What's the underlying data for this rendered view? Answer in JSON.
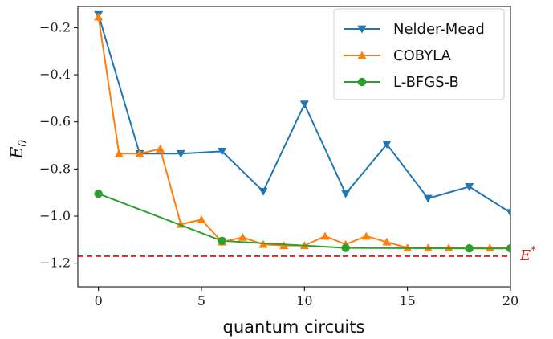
{
  "chart_data": {
    "type": "line",
    "xlabel": "quantum circuits",
    "ylabel": "E",
    "ylabel_sub": "θ",
    "xlim": [
      -1,
      20
    ],
    "ylim": [
      -1.3,
      -0.11
    ],
    "xticks": [
      0,
      5,
      10,
      15,
      20
    ],
    "xtick_labels": [
      "0",
      "5",
      "10",
      "15",
      "20"
    ],
    "yticks": [
      -0.2,
      -0.4,
      -0.6,
      -0.8,
      -1.0,
      -1.2
    ],
    "ytick_labels": [
      "−0.2",
      "−0.4",
      "−0.6",
      "−0.8",
      "−1.0",
      "−1.2"
    ],
    "grid": false,
    "legend_position": "top-right",
    "series": [
      {
        "name": "Nelder-Mead",
        "color": "#1f77b4",
        "marker": "triangle-down",
        "points": [
          [
            0,
            -0.145
          ],
          [
            2,
            -0.735
          ],
          [
            4,
            -0.735
          ],
          [
            6,
            -0.725
          ],
          [
            8,
            -0.895
          ],
          [
            10,
            -0.525
          ],
          [
            12,
            -0.905
          ],
          [
            14,
            -0.695
          ],
          [
            16,
            -0.925
          ],
          [
            18,
            -0.875
          ],
          [
            20,
            -0.985
          ]
        ]
      },
      {
        "name": "COBYLA",
        "color": "#ff7f0e",
        "marker": "triangle-up",
        "points": [
          [
            0,
            -0.155
          ],
          [
            1,
            -0.735
          ],
          [
            2,
            -0.735
          ],
          [
            3,
            -0.715
          ],
          [
            4,
            -1.035
          ],
          [
            5,
            -1.015
          ],
          [
            6,
            -1.11
          ],
          [
            7,
            -1.09
          ],
          [
            8,
            -1.12
          ],
          [
            9,
            -1.125
          ],
          [
            10,
            -1.125
          ],
          [
            11,
            -1.085
          ],
          [
            12,
            -1.12
          ],
          [
            13,
            -1.085
          ],
          [
            14,
            -1.11
          ],
          [
            15,
            -1.135
          ],
          [
            16,
            -1.135
          ],
          [
            17,
            -1.135
          ],
          [
            18,
            -1.135
          ],
          [
            19,
            -1.135
          ],
          [
            20,
            -1.135
          ]
        ]
      },
      {
        "name": "L-BFGS-B",
        "color": "#2ca02c",
        "marker": "circle",
        "points": [
          [
            0,
            -0.905
          ],
          [
            6,
            -1.105
          ],
          [
            12,
            -1.135
          ],
          [
            18,
            -1.137
          ],
          [
            20,
            -1.137
          ]
        ]
      }
    ],
    "reference_line": {
      "y": -1.17,
      "label": "E",
      "label_sup": "*",
      "color": "#d62728"
    }
  }
}
